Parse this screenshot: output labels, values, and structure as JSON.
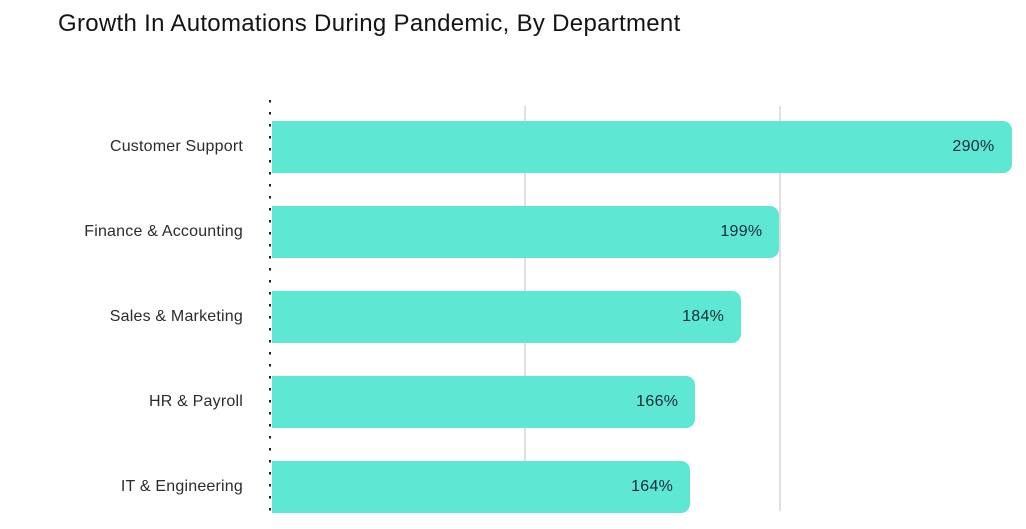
{
  "chart_data": {
    "type": "bar",
    "orientation": "horizontal",
    "title": "Growth In Automations During Pandemic, By Department",
    "categories": [
      "Customer Support",
      "Finance & Accounting",
      "Sales & Marketing",
      "HR & Payroll",
      "IT & Engineering"
    ],
    "values": [
      290,
      199,
      184,
      166,
      164
    ],
    "value_labels": [
      "290%",
      "199%",
      "184%",
      "166%",
      "164%"
    ],
    "value_unit": "%",
    "xlabel": "",
    "ylabel": "",
    "xlim": [
      0,
      296
    ],
    "gridlines_x": [
      100,
      200
    ],
    "grid": true,
    "legend": false,
    "bars_sorted_descending": true,
    "colors": {
      "bar": "#5ee8d4",
      "value_text": "#122b33",
      "category_text": "#2b2b2b",
      "title_text": "#141414",
      "gridline": "#e0e0e0",
      "axis_dotted": "#222222",
      "background": "#ffffff"
    }
  }
}
